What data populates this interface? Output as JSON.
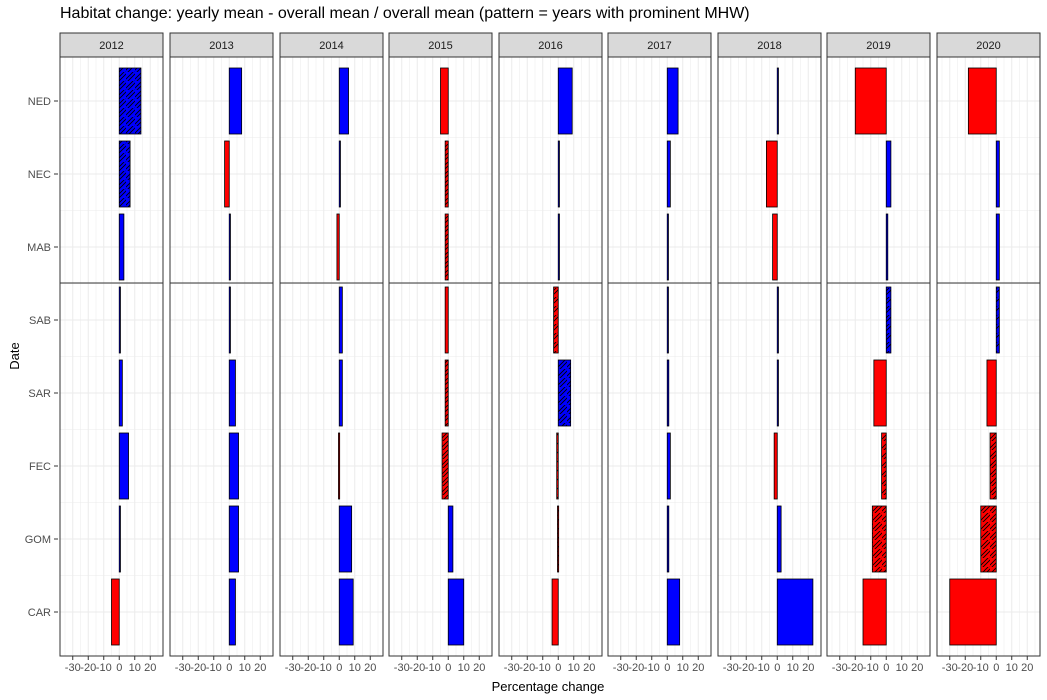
{
  "chart_data": {
    "type": "bar",
    "title": "Habitat change: yearly mean - overall mean / overall mean (pattern = years with prominent MHW)",
    "xlabel": "Percentage change",
    "ylabel": "Date",
    "facets": [
      "2012",
      "2013",
      "2014",
      "2015",
      "2016",
      "2017",
      "2018",
      "2019",
      "2020"
    ],
    "categories": [
      "NED",
      "NEC",
      "MAB",
      "SAB",
      "SAR",
      "FEC",
      "GOM",
      "CAR"
    ],
    "xlim": [
      -35,
      25
    ],
    "x_ticks": [
      -30,
      -20,
      -10,
      0,
      10,
      20
    ],
    "x_tick_labels": [
      "-30",
      "-20",
      "-10",
      "0",
      "10",
      "20"
    ],
    "colors": {
      "positive": "#0000FF",
      "negative": "#FF0000",
      "outline": "#000000",
      "strip_fill": "#D9D9D9",
      "grid": "#EBEBEB"
    },
    "panels": [
      {
        "year": "2012",
        "values": [
          14,
          7,
          3,
          0.5,
          2,
          6,
          0.5,
          -5
        ],
        "hatched": [
          "NED",
          "NEC"
        ]
      },
      {
        "year": "2013",
        "values": [
          8,
          -3,
          0.5,
          0.5,
          4,
          6,
          6,
          4
        ],
        "hatched": []
      },
      {
        "year": "2014",
        "values": [
          6,
          0.5,
          -1.5,
          2,
          2,
          -0.5,
          8,
          9
        ],
        "hatched": []
      },
      {
        "year": "2015",
        "values": [
          -5,
          -2,
          -2,
          -2,
          -2,
          -4,
          3,
          10
        ],
        "hatched": [
          "NEC",
          "MAB",
          "SAR",
          "FEC"
        ]
      },
      {
        "year": "2016",
        "values": [
          9,
          0.5,
          0.5,
          -3,
          8,
          -1,
          -0.5,
          -4
        ],
        "hatched": [
          "SAB",
          "SAR",
          "FEC",
          "GOM"
        ]
      },
      {
        "year": "2017",
        "values": [
          7,
          2,
          0.5,
          0.5,
          1,
          2,
          1,
          8
        ],
        "hatched": []
      },
      {
        "year": "2018",
        "values": [
          0.5,
          -7,
          -3,
          0.5,
          0.5,
          -2,
          2.5,
          23
        ],
        "hatched": []
      },
      {
        "year": "2019",
        "values": [
          -20,
          3,
          1,
          3,
          -8,
          -3,
          -9,
          -15
        ],
        "hatched": [
          "SAB",
          "FEC",
          "GOM"
        ]
      },
      {
        "year": "2020",
        "values": [
          -18,
          2,
          2,
          2,
          -6,
          -4,
          -10,
          -30
        ],
        "hatched": [
          "SAB",
          "FEC",
          "GOM"
        ]
      }
    ],
    "group_separator_after": "MAB",
    "grid": true,
    "legend": "none"
  }
}
